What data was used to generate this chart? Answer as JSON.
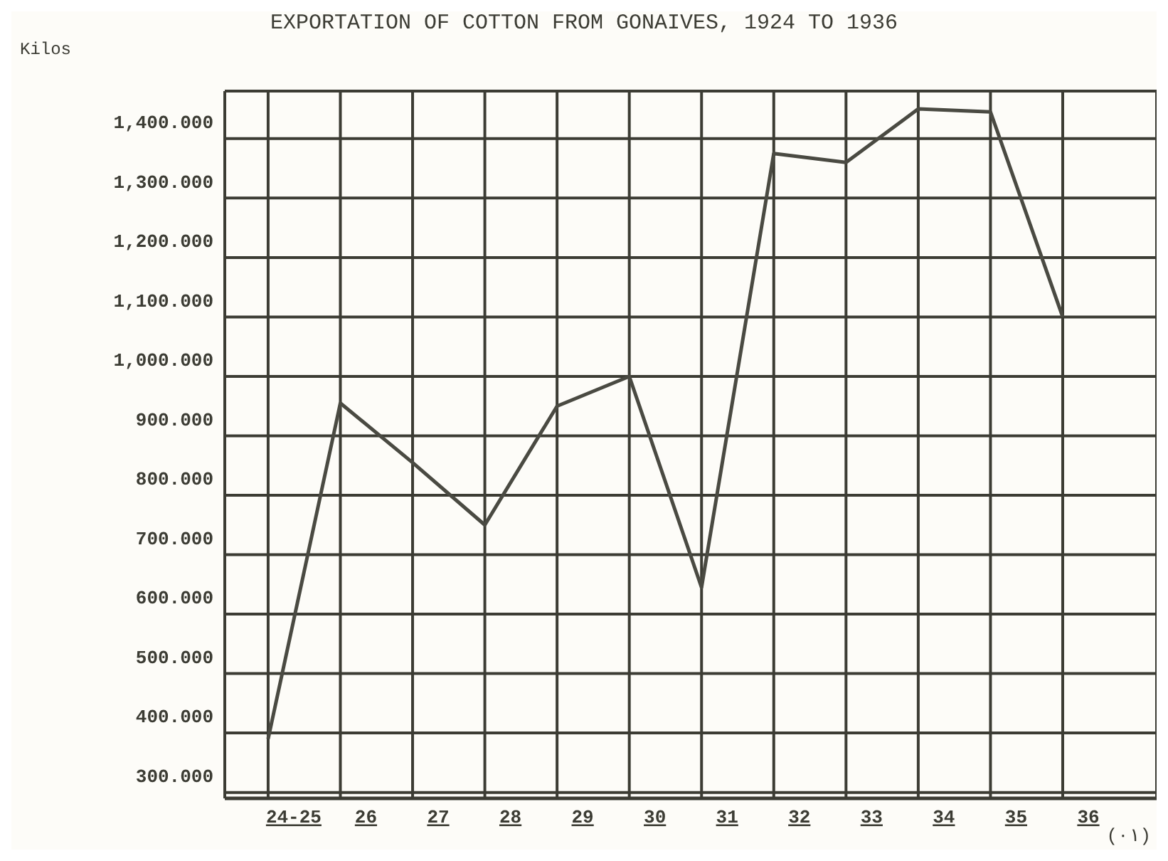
{
  "chart_data": {
    "type": "line",
    "title": "EXPORTATION OF COTTON FROM GONAIVES, 1924 TO 1936",
    "ylabel": "Kilos",
    "categories": [
      "24-25",
      "26",
      "27",
      "28",
      "29",
      "30",
      "31",
      "32",
      "33",
      "34",
      "35",
      "36"
    ],
    "series": [
      {
        "color": "#4a4a42",
        "values": [
          390,
          955,
          855,
          750,
          950,
          1000,
          645,
          1375,
          1360,
          1450,
          1445,
          1100
        ]
      }
    ],
    "ylim": [
      290,
      1480
    ],
    "yticks": [
      {
        "value": 300,
        "label": "300.000"
      },
      {
        "value": 400,
        "label": "400.000"
      },
      {
        "value": 500,
        "label": "500.000"
      },
      {
        "value": 600,
        "label": "600.000"
      },
      {
        "value": 700,
        "label": "700.000"
      },
      {
        "value": 800,
        "label": "800.000"
      },
      {
        "value": 900,
        "label": "900.000"
      },
      {
        "value": 1000,
        "label": "1,000.000"
      },
      {
        "value": 1100,
        "label": "1,100.000"
      },
      {
        "value": 1200,
        "label": "1,200.000"
      },
      {
        "value": 1300,
        "label": "1,300.000"
      },
      {
        "value": 1400,
        "label": "1,400.000"
      }
    ],
    "annotations": [
      "(٠١)"
    ],
    "grid": true,
    "marker": "none",
    "line_style": "solid"
  }
}
